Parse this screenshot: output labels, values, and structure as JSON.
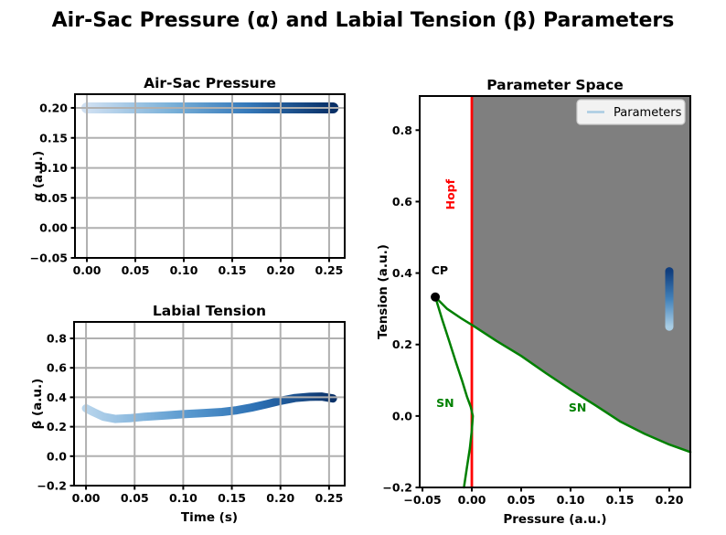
{
  "suptitle": "Air-Sac Pressure (α) and Labial Tension (β) Parameters",
  "colors": {
    "trajectory_blue_light": "#cfe0f2",
    "trajectory_blue_dark": "#08306b",
    "bistable_region_gray": "#7f7f7f",
    "hopf_red": "#ff0000",
    "sn_green": "#008000",
    "grid_gray": "#b0b0b0",
    "legend_swatch_blue": "#a9cbe2"
  },
  "chart_data": [
    {
      "id": "airsac",
      "type": "line",
      "title": "Air-Sac Pressure",
      "xlabel": "",
      "ylabel": "α (a.u.)",
      "xlim": [
        -0.0123,
        0.2661
      ],
      "ylim": [
        -0.05,
        0.2228
      ],
      "grid": true,
      "xticks": {
        "values": [
          0.0,
          0.05,
          0.1,
          0.15,
          0.2,
          0.25
        ],
        "labels": [
          "0.00",
          "0.05",
          "0.10",
          "0.15",
          "0.20",
          "0.25"
        ]
      },
      "yticks": {
        "values": [
          -0.05,
          0.0,
          0.05,
          0.1,
          0.15,
          0.2
        ],
        "labels": [
          "−0.05",
          "0.00",
          "0.05",
          "0.10",
          "0.15",
          "0.20"
        ]
      },
      "series": [
        {
          "name": "alpha-trajectory",
          "points": [
            [
              0.0,
              0.2
            ],
            [
              0.05,
              0.2
            ],
            [
              0.1,
              0.2
            ],
            [
              0.15,
              0.2
            ],
            [
              0.2,
              0.2
            ],
            [
              0.254,
              0.2
            ]
          ],
          "width": 12,
          "gradient": {
            "dir": "x",
            "stops": [
              [
                0,
                "#cfe0f2"
              ],
              [
                0.35,
                "#79b0d8"
              ],
              [
                0.65,
                "#3579ba"
              ],
              [
                1,
                "#082f66"
              ]
            ]
          }
        }
      ]
    },
    {
      "id": "tension",
      "type": "line",
      "title": "Labial Tension",
      "xlabel": "Time (s)",
      "ylabel": "β (a.u.)",
      "xlim": [
        -0.0123,
        0.2661
      ],
      "ylim": [
        -0.2,
        0.912
      ],
      "grid": true,
      "xticks": {
        "values": [
          0.0,
          0.05,
          0.1,
          0.15,
          0.2,
          0.25
        ],
        "labels": [
          "0.00",
          "0.05",
          "0.10",
          "0.15",
          "0.20",
          "0.25"
        ]
      },
      "yticks": {
        "values": [
          -0.2,
          0.0,
          0.2,
          0.4,
          0.6,
          0.8
        ],
        "labels": [
          "−0.2",
          "0.0",
          "0.2",
          "0.4",
          "0.6",
          "0.8"
        ]
      },
      "series": [
        {
          "name": "beta-trajectory",
          "points": [
            [
              0.0,
              0.325
            ],
            [
              0.008,
              0.298
            ],
            [
              0.018,
              0.268
            ],
            [
              0.03,
              0.253
            ],
            [
              0.045,
              0.258
            ],
            [
              0.06,
              0.268
            ],
            [
              0.08,
              0.276
            ],
            [
              0.1,
              0.285
            ],
            [
              0.12,
              0.292
            ],
            [
              0.14,
              0.3
            ],
            [
              0.155,
              0.312
            ],
            [
              0.17,
              0.33
            ],
            [
              0.185,
              0.352
            ],
            [
              0.2,
              0.376
            ],
            [
              0.215,
              0.395
            ],
            [
              0.23,
              0.403
            ],
            [
              0.242,
              0.405
            ],
            [
              0.254,
              0.392
            ]
          ],
          "width": 9,
          "gradient": {
            "dir": "x",
            "stops": [
              [
                0,
                "#b8d5ec"
              ],
              [
                0.4,
                "#5b9bd0"
              ],
              [
                0.7,
                "#2b6fb3"
              ],
              [
                1,
                "#0a3168"
              ]
            ]
          }
        }
      ]
    },
    {
      "id": "paramspace",
      "type": "line",
      "title": "Parameter Space",
      "xlabel": "Pressure (a.u.)",
      "ylabel": "Tension (a.u.)",
      "xlim": [
        -0.0528,
        0.2213
      ],
      "ylim": [
        -0.2,
        0.8955
      ],
      "grid": false,
      "xticks": {
        "values": [
          -0.05,
          0.0,
          0.05,
          0.1,
          0.15,
          0.2
        ],
        "labels": [
          "−0.05",
          "0.00",
          "0.05",
          "0.10",
          "0.15",
          "0.20"
        ]
      },
      "yticks": {
        "values": [
          -0.2,
          0.0,
          0.2,
          0.4,
          0.6,
          0.8
        ],
        "labels": [
          "−0.2",
          "0.0",
          "0.2",
          "0.4",
          "0.6",
          "0.8"
        ]
      },
      "regions": [
        {
          "name": "bistable-region",
          "fill": "#7f7f7f",
          "points": [
            [
              0.0,
              0.8955
            ],
            [
              0.0,
              0.255
            ],
            [
              0.025,
              0.21
            ],
            [
              0.05,
              0.168
            ],
            [
              0.075,
              0.12
            ],
            [
              0.1,
              0.074
            ],
            [
              0.125,
              0.03
            ],
            [
              0.15,
              -0.015
            ],
            [
              0.175,
              -0.05
            ],
            [
              0.2,
              -0.08
            ],
            [
              0.2213,
              -0.101
            ],
            [
              0.2213,
              0.8955
            ]
          ]
        }
      ],
      "vlines": [
        {
          "name": "hopf-line",
          "x": 0.0,
          "y0": -0.2,
          "y1": 0.8955,
          "color": "#ff0000",
          "width": 2.8
        }
      ],
      "series": [
        {
          "name": "sn-curve-left",
          "points": [
            [
              -0.037,
              0.333
            ],
            [
              -0.03,
              0.27
            ],
            [
              -0.023,
              0.21
            ],
            [
              -0.016,
              0.15
            ],
            [
              -0.01,
              0.1
            ],
            [
              -0.005,
              0.055
            ],
            [
              -0.001,
              0.025
            ],
            [
              0.001,
              0.0
            ],
            [
              0.0,
              -0.04
            ],
            [
              -0.002,
              -0.09
            ],
            [
              -0.005,
              -0.145
            ],
            [
              -0.008,
              -0.2
            ]
          ],
          "width": 2.5,
          "color": "#008000"
        },
        {
          "name": "sn-curve-right",
          "points": [
            [
              -0.037,
              0.333
            ],
            [
              -0.025,
              0.3
            ],
            [
              -0.01,
              0.272
            ],
            [
              0.0,
              0.255
            ],
            [
              0.025,
              0.21
            ],
            [
              0.05,
              0.168
            ],
            [
              0.075,
              0.12
            ],
            [
              0.1,
              0.074
            ],
            [
              0.125,
              0.03
            ],
            [
              0.15,
              -0.015
            ],
            [
              0.175,
              -0.05
            ],
            [
              0.2,
              -0.08
            ],
            [
              0.2213,
              -0.101
            ]
          ],
          "width": 2.5,
          "color": "#008000"
        },
        {
          "name": "parameter-trajectory",
          "points": [
            [
              0.2,
              0.25
            ],
            [
              0.2,
              0.405
            ]
          ],
          "width": 9,
          "gradient": {
            "dir": "y",
            "stops": [
              [
                0,
                "#a9cde4"
              ],
              [
                0.5,
                "#4282ba"
              ],
              [
                1,
                "#103e7e"
              ]
            ]
          }
        }
      ],
      "markers": [
        {
          "name": "cusp-point",
          "x": -0.037,
          "y": 0.333,
          "r": 5,
          "color": "#000000"
        }
      ],
      "annotations": [
        {
          "text": "CP",
          "x": -0.041,
          "y": 0.397,
          "color": "#000000",
          "anchor": "start",
          "rotation": 0
        },
        {
          "text": "Hopf",
          "x": -0.0176,
          "y": 0.62,
          "color": "#ff0000",
          "anchor": "middle",
          "rotation": -90
        },
        {
          "text": "SN",
          "x": -0.027,
          "y": 0.025,
          "color": "#008000",
          "anchor": "middle",
          "rotation": 0
        },
        {
          "text": "SN",
          "x": 0.107,
          "y": 0.012,
          "color": "#008000",
          "anchor": "middle",
          "rotation": 0
        }
      ],
      "legend": {
        "label": "Parameters",
        "swatch": "#a9cbe2",
        "position": "upper right"
      }
    }
  ]
}
